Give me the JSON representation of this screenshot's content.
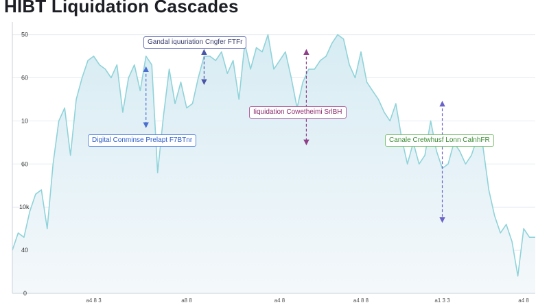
{
  "chart_data": {
    "type": "area",
    "title": "HIBT Liquidation Cascades",
    "y_ticks": [
      {
        "label": "50",
        "value": 6
      },
      {
        "label": "60",
        "value": 5
      },
      {
        "label": "10",
        "value": 4
      },
      {
        "label": "60",
        "value": 3
      },
      {
        "label": "10k",
        "value": 2
      },
      {
        "label": "40",
        "value": 1
      },
      {
        "label": "0",
        "value": 0
      }
    ],
    "x_ticks": [
      {
        "label": "a4 8 3",
        "x": 7
      },
      {
        "label": "a8 8",
        "x": 15
      },
      {
        "label": "a4 8",
        "x": 23
      },
      {
        "label": "a4 8 8",
        "x": 30
      },
      {
        "label": "a1 3 3",
        "x": 37
      },
      {
        "label": "a4 8",
        "x": 44
      }
    ],
    "xlim": [
      0,
      45
    ],
    "ylim": [
      0,
      6.2
    ],
    "x": [
      0,
      0.5,
      1,
      1.5,
      2,
      2.5,
      3,
      3.5,
      4,
      4.5,
      5,
      5.5,
      6,
      6.5,
      7,
      7.5,
      8,
      8.5,
      9,
      9.5,
      10,
      10.5,
      11,
      11.5,
      12,
      12.5,
      13,
      13.5,
      14,
      14.5,
      15,
      15.5,
      16,
      16.5,
      17,
      17.5,
      18,
      18.5,
      19,
      19.5,
      20,
      20.5,
      21,
      21.5,
      22,
      22.5,
      23,
      23.5,
      24,
      24.5,
      25,
      25.5,
      26,
      26.5,
      27,
      27.5,
      28,
      28.5,
      29,
      29.5,
      30,
      30.5,
      31,
      31.5,
      32,
      32.5,
      33,
      33.5,
      34,
      34.5,
      35,
      35.5,
      36,
      36.5,
      37,
      37.5,
      38,
      38.5,
      39,
      39.5,
      40,
      40.5,
      41,
      41.5,
      42,
      42.5,
      43,
      43.5,
      44,
      44.5,
      45
    ],
    "y": [
      1.0,
      1.4,
      1.3,
      1.9,
      2.3,
      2.4,
      1.5,
      3.0,
      4.0,
      4.3,
      3.2,
      4.5,
      5.0,
      5.4,
      5.5,
      5.3,
      5.2,
      5.0,
      5.3,
      4.2,
      5.0,
      5.3,
      4.7,
      5.5,
      5.3,
      2.8,
      4.1,
      5.2,
      4.4,
      4.9,
      4.3,
      4.4,
      5.0,
      5.5,
      5.5,
      5.4,
      5.6,
      5.1,
      5.4,
      4.5,
      5.8,
      5.2,
      5.7,
      5.6,
      6.0,
      5.2,
      5.4,
      5.6,
      5.0,
      4.3,
      4.9,
      5.2,
      5.2,
      5.4,
      5.5,
      5.8,
      6.0,
      5.9,
      5.3,
      5.0,
      5.6,
      4.9,
      4.7,
      4.5,
      4.2,
      4.0,
      4.4,
      3.6,
      3.0,
      3.5,
      3.0,
      3.2,
      4.0,
      3.3,
      2.9,
      3.0,
      3.5,
      3.3,
      3.0,
      3.2,
      3.6,
      3.4,
      2.4,
      1.8,
      1.4,
      1.6,
      1.2,
      0.4,
      1.5,
      1.3,
      1.3
    ],
    "annotations": [
      {
        "text": "Gandal iquuriation Cngfer FTFr",
        "x1": 16.5,
        "y1": 5.6,
        "x2": 16.5,
        "y2": 4.9
      },
      {
        "text": "Digital Conminse Prelapt F7BTnr",
        "x1": 11.5,
        "y1": 5.2,
        "x2": 11.5,
        "y2": 3.9
      },
      {
        "text": "Iiquidation Cowetheimi SrlBH",
        "x1": 25.3,
        "y1": 5.6,
        "x2": 25.3,
        "y2": 3.5
      },
      {
        "text": "Canale Cretwhusf Lonn CalnhFR",
        "x1": 37.0,
        "y1": 4.4,
        "x2": 37.0,
        "y2": 1.7
      }
    ]
  }
}
